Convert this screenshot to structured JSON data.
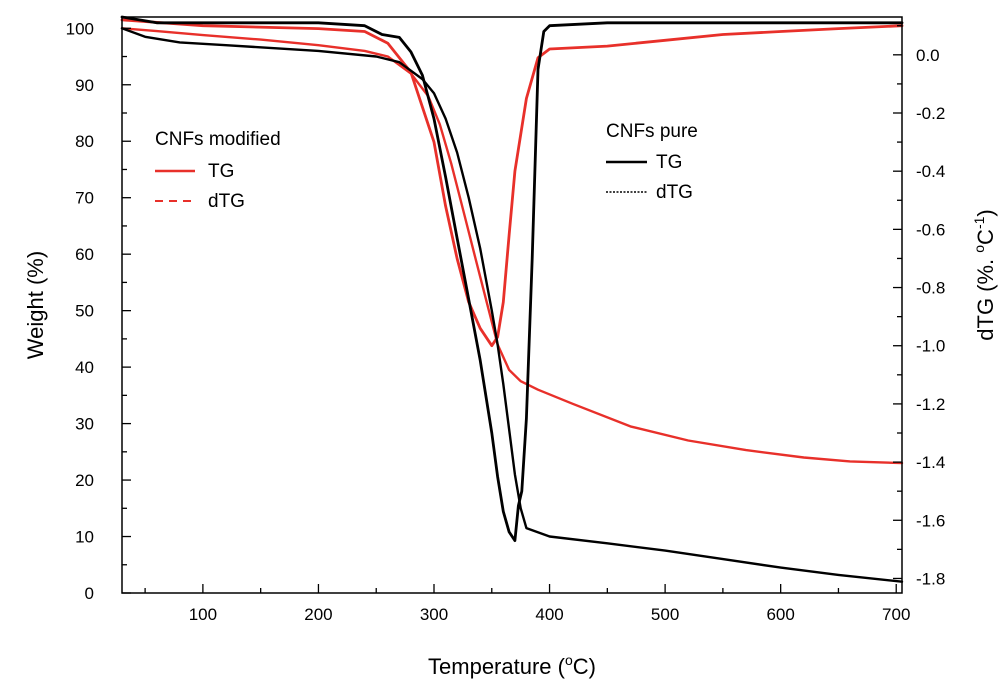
{
  "chart_data": {
    "type": "line",
    "xlabel": "Temperature (°C)",
    "xlabel_parts": {
      "pre": "Temperature (",
      "sup": "o",
      "post": "C)"
    },
    "ylabel_left": "Weight (%)",
    "ylabel_right": "dTG (%. °C-1)",
    "ylabel_right_parts": {
      "pre": "dTG (%. ",
      "sup1": "o",
      "mid": "C",
      "sup2": "-1",
      "post": ")"
    },
    "xlim": [
      30,
      705
    ],
    "ylim_left": [
      0,
      102
    ],
    "ylim_right": [
      -1.85,
      0.13
    ],
    "x_ticks": [
      100,
      200,
      300,
      400,
      500,
      600,
      700
    ],
    "y_left_ticks": [
      0,
      10,
      20,
      30,
      40,
      50,
      60,
      70,
      80,
      90,
      100
    ],
    "y_right_ticks": [
      -1.8,
      -1.6,
      -1.4,
      -1.2,
      -1.0,
      -0.8,
      -0.6,
      -0.4,
      -0.2,
      0.0
    ],
    "y_right_tick_labels": [
      "-1.8",
      "-1.6",
      "-1.4",
      "-1.2",
      "-1.0",
      "-0.8",
      "-0.6",
      "-0.4",
      "-0.2",
      "0.0"
    ],
    "legends": [
      {
        "title": "CNFs modified",
        "entries": [
          {
            "label": "TG",
            "style": "solid",
            "color": "#e8302a"
          },
          {
            "label": "dTG",
            "style": "dashed",
            "color": "#e8302a"
          }
        ]
      },
      {
        "title": "CNFs pure",
        "entries": [
          {
            "label": "TG",
            "style": "solid",
            "color": "#000000"
          },
          {
            "label": "dTG",
            "style": "dotted",
            "color": "#000000"
          }
        ]
      }
    ],
    "series": [
      {
        "name": "CNFs modified TG",
        "axis": "left",
        "color": "#e8302a",
        "style": "solid",
        "x": [
          30,
          60,
          100,
          150,
          200,
          240,
          260,
          280,
          295,
          305,
          315,
          325,
          335,
          345,
          355,
          365,
          375,
          390,
          420,
          470,
          520,
          570,
          620,
          660,
          705
        ],
        "y": [
          100,
          99.5,
          98.8,
          98,
          97,
          96,
          95,
          92,
          88,
          83,
          76,
          68,
          60,
          52,
          44,
          39.5,
          37.5,
          36,
          33.5,
          29.5,
          27,
          25.3,
          24,
          23.3,
          23
        ]
      },
      {
        "name": "CNFs modified dTG",
        "axis": "right",
        "color": "#e8302a",
        "style": "dashed",
        "x": [
          30,
          100,
          200,
          240,
          260,
          280,
          300,
          310,
          320,
          330,
          340,
          350,
          355,
          360,
          365,
          370,
          380,
          390,
          400,
          450,
          500,
          550,
          600,
          650,
          705
        ],
        "y": [
          0.12,
          0.1,
          0.09,
          0.08,
          0.04,
          -0.06,
          -0.3,
          -0.52,
          -0.7,
          -0.85,
          -0.94,
          -1.0,
          -0.97,
          -0.85,
          -0.62,
          -0.4,
          -0.15,
          -0.01,
          0.02,
          0.03,
          0.05,
          0.07,
          0.08,
          0.09,
          0.1
        ]
      },
      {
        "name": "CNFs pure TG",
        "axis": "left",
        "color": "#000000",
        "style": "solid",
        "x": [
          30,
          50,
          80,
          120,
          200,
          250,
          270,
          290,
          300,
          310,
          320,
          330,
          340,
          350,
          355,
          360,
          365,
          370,
          375,
          380,
          400,
          450,
          500,
          550,
          600,
          650,
          705
        ],
        "y": [
          100,
          98.5,
          97.5,
          97,
          96,
          95,
          94,
          91,
          88.5,
          84,
          78,
          70,
          61,
          50,
          44,
          37,
          29,
          21,
          15,
          11.5,
          10,
          8.8,
          7.5,
          6,
          4.5,
          3.2,
          2
        ]
      },
      {
        "name": "CNFs pure dTG",
        "axis": "right",
        "color": "#000000",
        "style": "dotted",
        "x": [
          30,
          60,
          100,
          150,
          200,
          240,
          255,
          270,
          280,
          290,
          300,
          310,
          320,
          330,
          340,
          350,
          355,
          360,
          365,
          370,
          373,
          376,
          380,
          385,
          390,
          395,
          400,
          450,
          500,
          550,
          600,
          650,
          705
        ],
        "y": [
          0.13,
          0.11,
          0.11,
          0.11,
          0.11,
          0.1,
          0.07,
          0.06,
          0.01,
          -0.07,
          -0.22,
          -0.42,
          -0.63,
          -0.84,
          -1.05,
          -1.3,
          -1.45,
          -1.57,
          -1.64,
          -1.67,
          -1.55,
          -1.5,
          -1.25,
          -0.7,
          -0.05,
          0.08,
          0.1,
          0.11,
          0.11,
          0.11,
          0.11,
          0.11,
          0.11
        ]
      }
    ]
  }
}
